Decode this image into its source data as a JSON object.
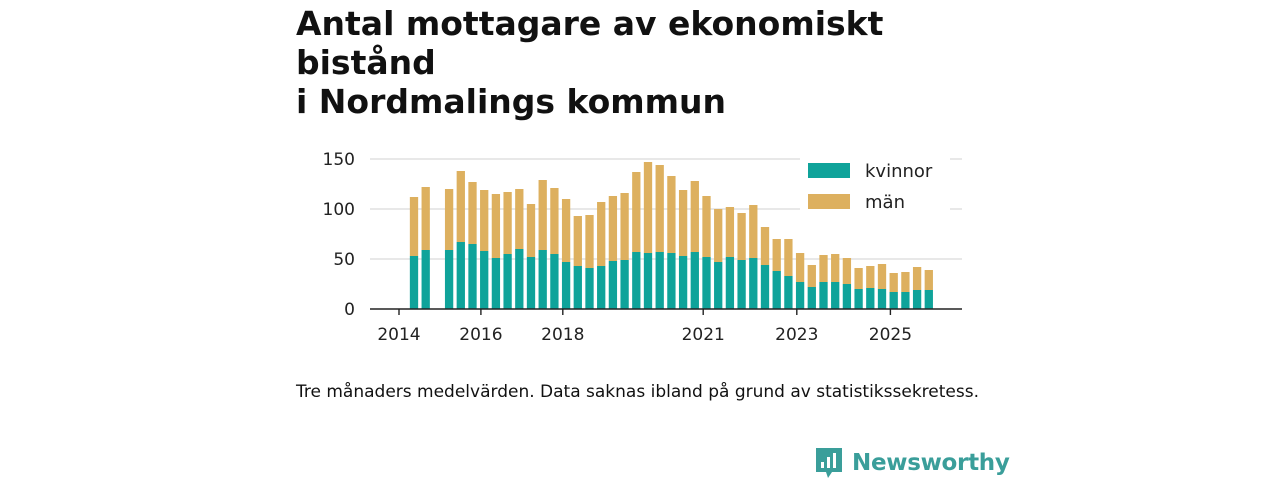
{
  "header": {
    "title_line1": "Antal mottagare av ekonomiskt bistånd",
    "title_line2": "i Nordmalings kommun"
  },
  "footer": {
    "caption": "Tre månaders medelvärden. Data saknas ibland på grund av statistikssekretess.",
    "brand": "Newsworthy"
  },
  "colors": {
    "kvinnor": "#0fa39a",
    "man": "#ddb05f",
    "grid": "#d9d9d9",
    "axis": "#222222",
    "brand": "#3a9e9a"
  },
  "chart_data": {
    "type": "bar",
    "stacked": true,
    "x_unit": "quarter",
    "x": [
      "2014Q2",
      "2014Q3",
      "2014Q4",
      "2015Q1",
      "2015Q2",
      "2015Q3",
      "2015Q4",
      "2016Q1",
      "2016Q2",
      "2016Q3",
      "2016Q4",
      "2017Q1",
      "2017Q2",
      "2017Q3",
      "2017Q4",
      "2018Q1",
      "2018Q2",
      "2018Q3",
      "2018Q4",
      "2019Q1",
      "2019Q2",
      "2019Q3",
      "2019Q4",
      "2020Q1",
      "2020Q2",
      "2020Q3",
      "2020Q4",
      "2021Q1",
      "2021Q2",
      "2021Q3",
      "2021Q4",
      "2022Q1",
      "2022Q2",
      "2022Q3",
      "2022Q4",
      "2023Q1",
      "2023Q2",
      "2023Q3",
      "2023Q4",
      "2024Q1",
      "2024Q2",
      "2024Q3",
      "2024Q4",
      "2025Q1",
      "2025Q2",
      "2025Q3"
    ],
    "series": [
      {
        "name": "kvinnor",
        "values": [
          53,
          59,
          null,
          59,
          67,
          65,
          58,
          51,
          55,
          60,
          52,
          59,
          55,
          47,
          43,
          41,
          43,
          48,
          49,
          57,
          56,
          57,
          56,
          53,
          57,
          52,
          47,
          52,
          49,
          51,
          44,
          38,
          33,
          27,
          22,
          27,
          27,
          25,
          20,
          21,
          20,
          17,
          17,
          19,
          19,
          null
        ]
      },
      {
        "name": "män",
        "values": [
          59,
          63,
          null,
          61,
          71,
          62,
          61,
          64,
          62,
          60,
          53,
          70,
          66,
          63,
          50,
          53,
          64,
          65,
          67,
          80,
          91,
          87,
          77,
          66,
          71,
          61,
          53,
          50,
          47,
          53,
          38,
          32,
          37,
          29,
          22,
          27,
          28,
          26,
          21,
          22,
          25,
          19,
          20,
          23,
          20,
          null
        ]
      }
    ],
    "xaxis": {
      "ticks": [
        "2014",
        "2016",
        "2018",
        "2021",
        "2023",
        "2025"
      ],
      "tick_positions": [
        "2014Q2",
        "2016Q1",
        "2017Q4",
        "2020Q4",
        "2022Q4",
        "2024Q4"
      ]
    },
    "yaxis": {
      "min": 0,
      "max": 160,
      "ticks": [
        0,
        50,
        100,
        150
      ]
    },
    "legend": {
      "position": "top-right",
      "entries": [
        "kvinnor",
        "män"
      ]
    },
    "grid": true
  }
}
